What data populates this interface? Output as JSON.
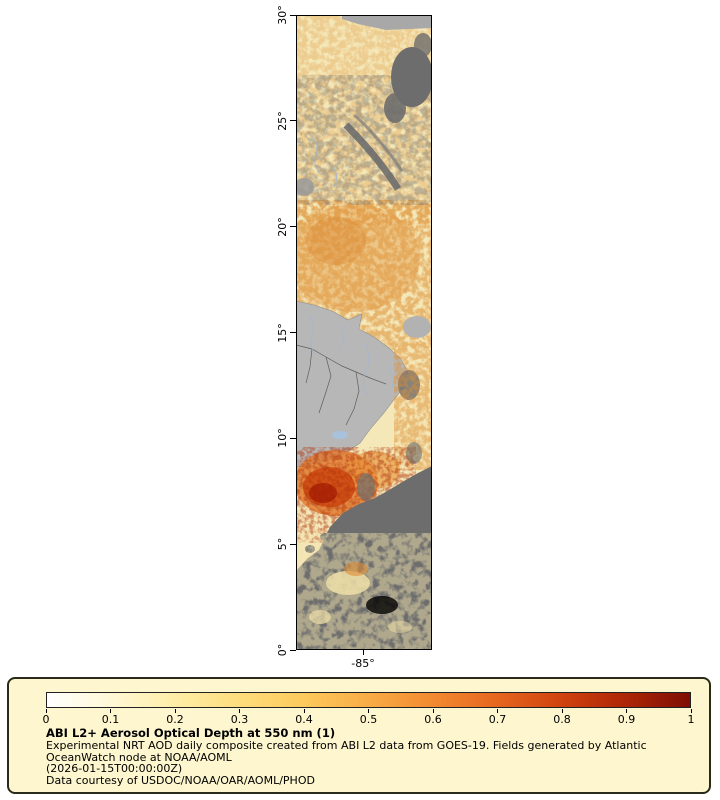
{
  "page": {
    "background": "#ffffff"
  },
  "map": {
    "y_tick_labels": [
      "30°",
      "25°",
      "20°",
      "15°",
      "10°",
      "5°",
      "0°"
    ],
    "x_tick_labels": [
      "-85°"
    ],
    "colors": {
      "ocean_background": "#f4e7b8",
      "land": "#b7b7b7",
      "no_data_cloud": "#6d6d6d",
      "river": "#9db6d4",
      "dust_moderate": "#e2953f",
      "aod_high": "#cc4511",
      "aod_extreme": "#a51e06"
    }
  },
  "legend": {
    "panel_background": "#fdf6ce",
    "tick_labels": [
      "0",
      "0.1",
      "0.2",
      "0.3",
      "0.4",
      "0.5",
      "0.6",
      "0.7",
      "0.8",
      "0.9",
      "1"
    ],
    "gradient_stops": [
      "#ffffff",
      "#fff8d6",
      "#ffeda6",
      "#fedd7c",
      "#fdc95c",
      "#f9ac46",
      "#f28a30",
      "#e6661e",
      "#d0430f",
      "#ad2607",
      "#7d0d04"
    ]
  },
  "caption": {
    "title": "ABI L2+ Aerosol Optical Depth at 550 nm (1)",
    "description": "Experimental NRT AOD daily composite created from ABI L2 data from GOES-19. Fields generated by Atlantic OceanWatch node at NOAA/AOML",
    "timestamp": "(2026-01-15T00:00:00Z)",
    "credit": "Data courtesy of USDOC/NOAA/OAR/AOML/PHOD"
  },
  "chart_data": {
    "type": "heatmap",
    "title": "ABI L2+ Aerosol Optical Depth at 550 nm (1)",
    "variable": "Aerosol Optical Depth at 550 nm",
    "source": "ABI L2 data from GOES-19",
    "timestamp": "2026-01-15T00:00:00Z",
    "colorbar": {
      "min": 0,
      "max": 1,
      "ticks": [
        0,
        0.1,
        0.2,
        0.3,
        0.4,
        0.5,
        0.6,
        0.7,
        0.8,
        0.9,
        1
      ],
      "orientation": "horizontal",
      "position": "bottom"
    },
    "y_axis": {
      "ticks_deg_latitude": [
        0,
        5,
        10,
        15,
        20,
        25,
        30
      ],
      "range": [
        0,
        30
      ]
    },
    "x_axis": {
      "ticks_deg_longitude": [
        -85
      ]
    },
    "grid": false
  }
}
